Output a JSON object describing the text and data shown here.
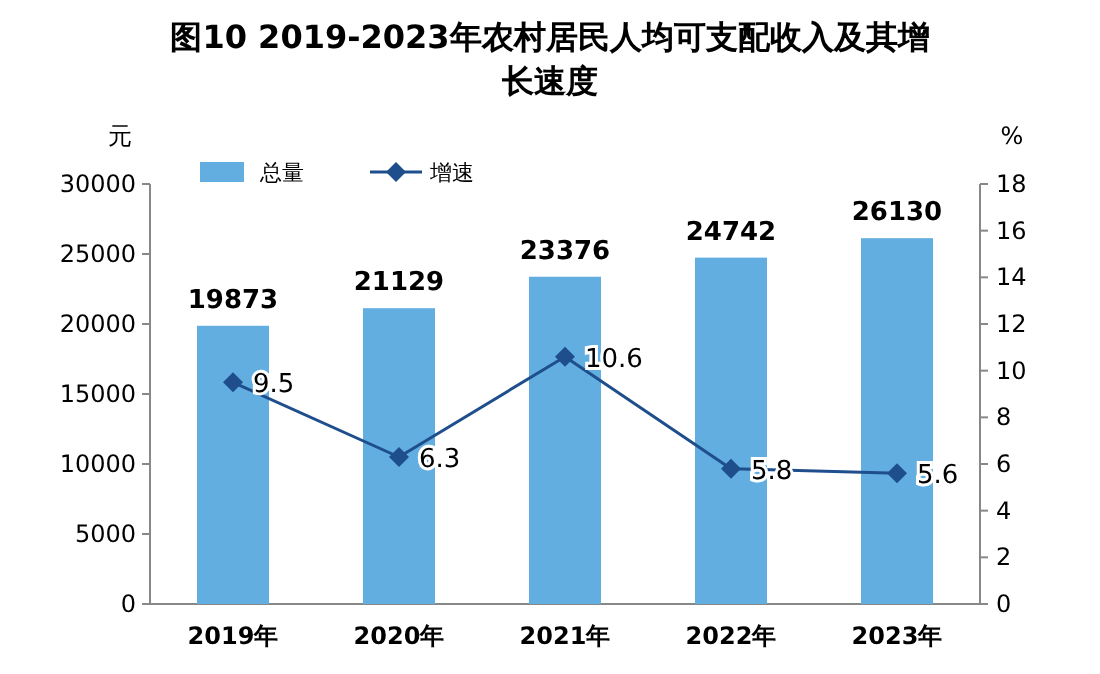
{
  "chart_data": {
    "type": "bar",
    "title": "图10  2019-2023年农村居民人均可支配收入及其增长速度",
    "ylabel": "元",
    "y2label": "%",
    "categories": [
      "2019年",
      "2020年",
      "2021年",
      "2022年",
      "2023年"
    ],
    "series": [
      {
        "name": "总量",
        "color": "#62aee0",
        "values": [
          19873,
          21129,
          23376,
          24742,
          26130
        ]
      },
      {
        "name": "增速",
        "type": "line",
        "axis": "y2",
        "color": "#1f4e8c",
        "values": [
          9.5,
          6.3,
          10.6,
          5.8,
          5.6
        ]
      }
    ],
    "ylim": [
      0,
      30000
    ],
    "yticks": [
      0,
      5000,
      10000,
      15000,
      20000,
      25000,
      30000
    ],
    "y2lim": [
      0,
      18
    ],
    "y2ticks": [
      0,
      2,
      4,
      6,
      8,
      10,
      12,
      14,
      16,
      18
    ],
    "data_labels": true,
    "legend": "top left",
    "grid": false,
    "marker": "diamond",
    "line_style": "solid"
  }
}
